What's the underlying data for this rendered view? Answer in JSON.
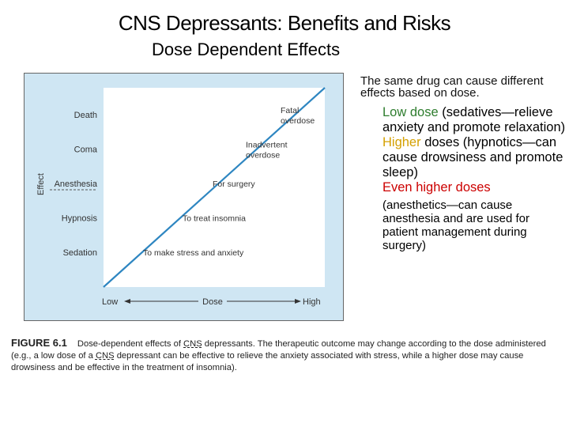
{
  "page": {
    "title": "CNS Depressants: Benefits and Risks",
    "subtitle": "Dose Dependent Effects"
  },
  "side_text": {
    "intro": "The same drug can cause different effects based on dose.",
    "bullets": [
      {
        "highlight": "Low dose",
        "highlight_color": "#2e7d2e",
        "rest": " (sedatives—relieve anxiety and promote relaxation)"
      },
      {
        "highlight": "Higher",
        "highlight_color": "#d4a000",
        "rest": " doses (hypnotics—can cause drowsiness and promote sleep)"
      },
      {
        "highlight": "Even higher doses",
        "highlight_color": "#cc0000",
        "rest": "(anesthetics—can cause anesthesia and are used for patient management during surgery)"
      }
    ]
  },
  "caption": {
    "label": "FIGURE 6.1",
    "part1": "Dose-dependent effects of ",
    "abbr1": "CNS",
    "part2": " depressants. The therapeutic outcome may change according to the dose administered (e.g., a low dose of a ",
    "abbr2": "CNS",
    "part3": " depressant can be effective to relieve the anxiety associated with stress, while a higher dose may cause drowsiness and be effective in the treatment of insomnia)."
  },
  "chart_data": {
    "type": "line",
    "title": "",
    "xlabel": "Dose",
    "ylabel": "Effect",
    "x_ticks": [
      "Low",
      "High"
    ],
    "y_levels": [
      "Sedation",
      "Hypnosis",
      "Anesthesia",
      "Coma",
      "Death"
    ],
    "underlined_levels": [
      "Anesthesia"
    ],
    "series": [
      {
        "x": [
          0,
          1
        ],
        "y": [
          0,
          1
        ]
      }
    ],
    "annotations": [
      {
        "text": "To make stress and anxiety",
        "level": "Sedation"
      },
      {
        "text": "To treat insomnia",
        "level": "Hypnosis"
      },
      {
        "text": "For surgery",
        "level": "Anesthesia"
      },
      {
        "text": "Inadvertent overdose",
        "level": "Coma"
      },
      {
        "text": "Fatal overdose",
        "level": "Death"
      }
    ],
    "colors": {
      "line": "#2e86c1",
      "plot_bg": "#ffffff",
      "panel_bg": "#cfe6f3"
    },
    "grid": false,
    "legend": "none"
  }
}
